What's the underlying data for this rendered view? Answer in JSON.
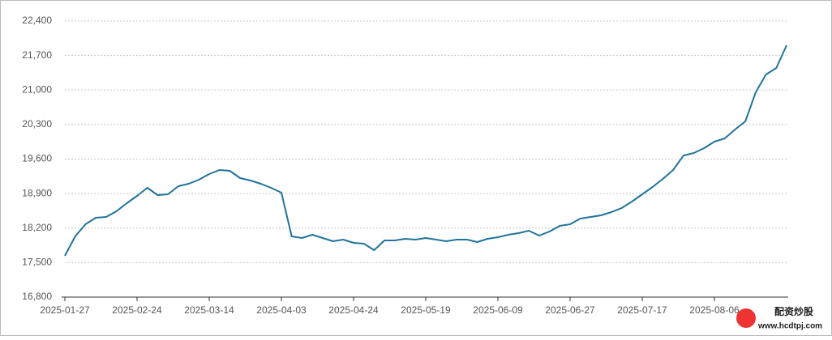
{
  "chart_data": {
    "type": "line",
    "categories": [
      "2025-01-27",
      null,
      null,
      null,
      null,
      null,
      null,
      "2025-02-24",
      null,
      null,
      null,
      null,
      null,
      null,
      "2025-03-14",
      null,
      null,
      null,
      null,
      null,
      null,
      "2025-04-03",
      null,
      null,
      null,
      null,
      null,
      null,
      "2025-04-24",
      null,
      null,
      null,
      null,
      null,
      null,
      "2025-05-19",
      null,
      null,
      null,
      null,
      null,
      null,
      "2025-06-09",
      null,
      null,
      null,
      null,
      null,
      null,
      "2025-06-27",
      null,
      null,
      null,
      null,
      null,
      null,
      "2025-07-17",
      null,
      null,
      null,
      null,
      null,
      null,
      "2025-08-06",
      null,
      null,
      null,
      null,
      null,
      null,
      null
    ],
    "series": [
      {
        "color": "#21739b",
        "values": [
          17637,
          18032,
          18278,
          18409,
          18426,
          18540,
          18705,
          18853,
          19017,
          18869,
          18885,
          19050,
          19099,
          19181,
          19296,
          19378,
          19362,
          19214,
          19165,
          19099,
          19017,
          18918,
          18032,
          17999,
          18065,
          17999,
          17933,
          17966,
          17900,
          17884,
          17752,
          17949,
          17949,
          17982,
          17966,
          17999,
          17966,
          17933,
          17966,
          17966,
          17917,
          17982,
          18015,
          18065,
          18097,
          18146,
          18048,
          18130,
          18245,
          18278,
          18393,
          18426,
          18459,
          18524,
          18606,
          18738,
          18885,
          19033,
          19197,
          19378,
          19673,
          19723,
          19821,
          19953,
          20019,
          20199,
          20363,
          20954,
          21316,
          21447,
          21907
        ]
      }
    ],
    "ylim": [
      16800,
      22400
    ],
    "yticks": [
      {
        "value": 16800,
        "label": "16,800"
      },
      {
        "value": 17500,
        "label": "17,500"
      },
      {
        "value": 18200,
        "label": "18,200"
      },
      {
        "value": 18900,
        "label": "18,900"
      },
      {
        "value": 19600,
        "label": "19,600"
      },
      {
        "value": 20300,
        "label": "20,300"
      },
      {
        "value": 21000,
        "label": "21,000"
      },
      {
        "value": 21700,
        "label": "21,700"
      },
      {
        "value": 22400,
        "label": "22,400"
      }
    ],
    "grid": true
  },
  "watermark": {
    "brand": "配资炒股",
    "url": "www.hcdtpj.com"
  }
}
